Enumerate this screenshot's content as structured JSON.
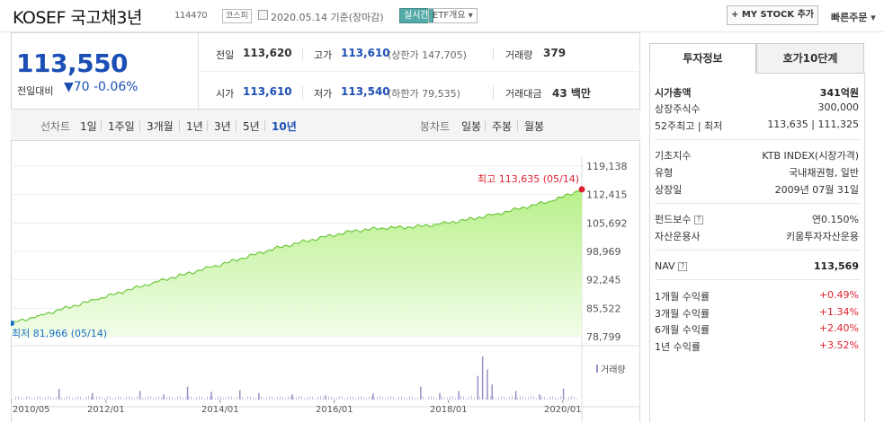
{
  "header": {
    "title": "KOSEF 국고채3년",
    "code": "114470",
    "market": "코스피",
    "date_text": "2020.05.14 기준(장마감)",
    "realtime_label": "실시간",
    "etf_info_label": "ETF개요 ▾",
    "my_stock_label": "+ MY STOCK 추가",
    "quick_order_label": "빠른주문 ▾"
  },
  "quote": {
    "price": "113,550",
    "change_label": "전일대비",
    "change_value": "▼70",
    "change_pct": "-0.06%",
    "prev_close_label": "전일",
    "prev_close": "113,620",
    "high_label": "고가",
    "high": "113,610",
    "upper_limit": "(상한가 147,705)",
    "volume_label": "거래량",
    "volume": "379",
    "open_label": "시가",
    "open": "113,610",
    "low_label": "저가",
    "low": "113,540",
    "lower_limit": "(하한가 79,535)",
    "amount_label": "거래대금",
    "amount": "43 백만"
  },
  "periods": {
    "line_label": "선차트",
    "line_items": [
      "1일",
      "1주일",
      "3개월",
      "1년",
      "3년",
      "5년",
      "10년"
    ],
    "selected": "10년",
    "candle_label": "봉차트",
    "candle_items": [
      "일봉",
      "주봉",
      "월봉"
    ]
  },
  "chart_data": {
    "type": "area",
    "x": [
      "2010/05",
      "2010/11",
      "2011/05",
      "2011/11",
      "2012/05",
      "2012/11",
      "2013/05",
      "2013/11",
      "2014/05",
      "2014/11",
      "2015/05",
      "2015/11",
      "2016/05",
      "2016/11",
      "2017/05",
      "2017/11",
      "2018/05",
      "2018/11",
      "2019/05",
      "2019/11",
      "2020/05"
    ],
    "values": [
      81966,
      83800,
      85700,
      87600,
      89600,
      91600,
      93400,
      95200,
      97100,
      99200,
      100900,
      102400,
      103800,
      104500,
      104700,
      105400,
      106500,
      107800,
      109400,
      111000,
      113635
    ],
    "ylim": [
      78799,
      119138
    ],
    "yticks": [
      "119,138",
      "112,415",
      "105,692",
      "98,969",
      "92,245",
      "85,522",
      "78,799"
    ],
    "xticks": [
      "2010/05",
      "2012/01",
      "2014/01",
      "2016/01",
      "2018/01",
      "2020/01"
    ],
    "max_label": "최고 113,635 (05/14)",
    "min_label": "최저 81,966 (05/14)",
    "volume_legend": "거래량",
    "volume_spikes": [
      {
        "x": "2011/03",
        "v": 0.25
      },
      {
        "x": "2011/10",
        "v": 0.15
      },
      {
        "x": "2012/08",
        "v": 0.2
      },
      {
        "x": "2013/01",
        "v": 0.12
      },
      {
        "x": "2013/06",
        "v": 0.3
      },
      {
        "x": "2013/11",
        "v": 0.18
      },
      {
        "x": "2014/05",
        "v": 0.22
      },
      {
        "x": "2014/09",
        "v": 0.15
      },
      {
        "x": "2015/04",
        "v": 0.12
      },
      {
        "x": "2015/11",
        "v": 0.1
      },
      {
        "x": "2016/09",
        "v": 0.14
      },
      {
        "x": "2017/07",
        "v": 0.3
      },
      {
        "x": "2017/11",
        "v": 0.15
      },
      {
        "x": "2018/03",
        "v": 0.2
      },
      {
        "x": "2018/07",
        "v": 0.55
      },
      {
        "x": "2018/08",
        "v": 1.0
      },
      {
        "x": "2018/09",
        "v": 0.7
      },
      {
        "x": "2018/10",
        "v": 0.35
      },
      {
        "x": "2019/03",
        "v": 0.2
      },
      {
        "x": "2019/08",
        "v": 0.12
      },
      {
        "x": "2020/01",
        "v": 0.25
      }
    ],
    "colors": {
      "fill": "#b8f08a",
      "line": "#6cc83c",
      "max": "#e0212f",
      "min": "#1c6dc9",
      "volume": "#9a8fc7"
    }
  },
  "tabs": {
    "info": "투자정보",
    "orderbook": "호가10단계"
  },
  "info": {
    "market_cap_label": "시가총액",
    "market_cap": "341억원",
    "shares_label": "상장주식수",
    "shares": "300,000",
    "week52_label": "52주최고 | 최저",
    "week52": "113,635 | 111,325",
    "index_label": "기초지수",
    "index": "KTB INDEX(시장가격)",
    "type_label": "유형",
    "type": "국내채권형, 일반",
    "listed_label": "상장일",
    "listed": "2009년 07월 31일",
    "fee_label": "펀드보수",
    "fee": "연0.150%",
    "manager_label": "자산운용사",
    "manager": "키움투자자산운용",
    "nav_label": "NAV",
    "nav": "113,569",
    "ret1m_label": "1개월 수익률",
    "ret1m": "+0.49%",
    "ret3m_label": "3개월 수익률",
    "ret3m": "+1.34%",
    "ret6m_label": "6개월 수익률",
    "ret6m": "+2.40%",
    "ret1y_label": "1년 수익률",
    "ret1y": "+3.52%"
  }
}
